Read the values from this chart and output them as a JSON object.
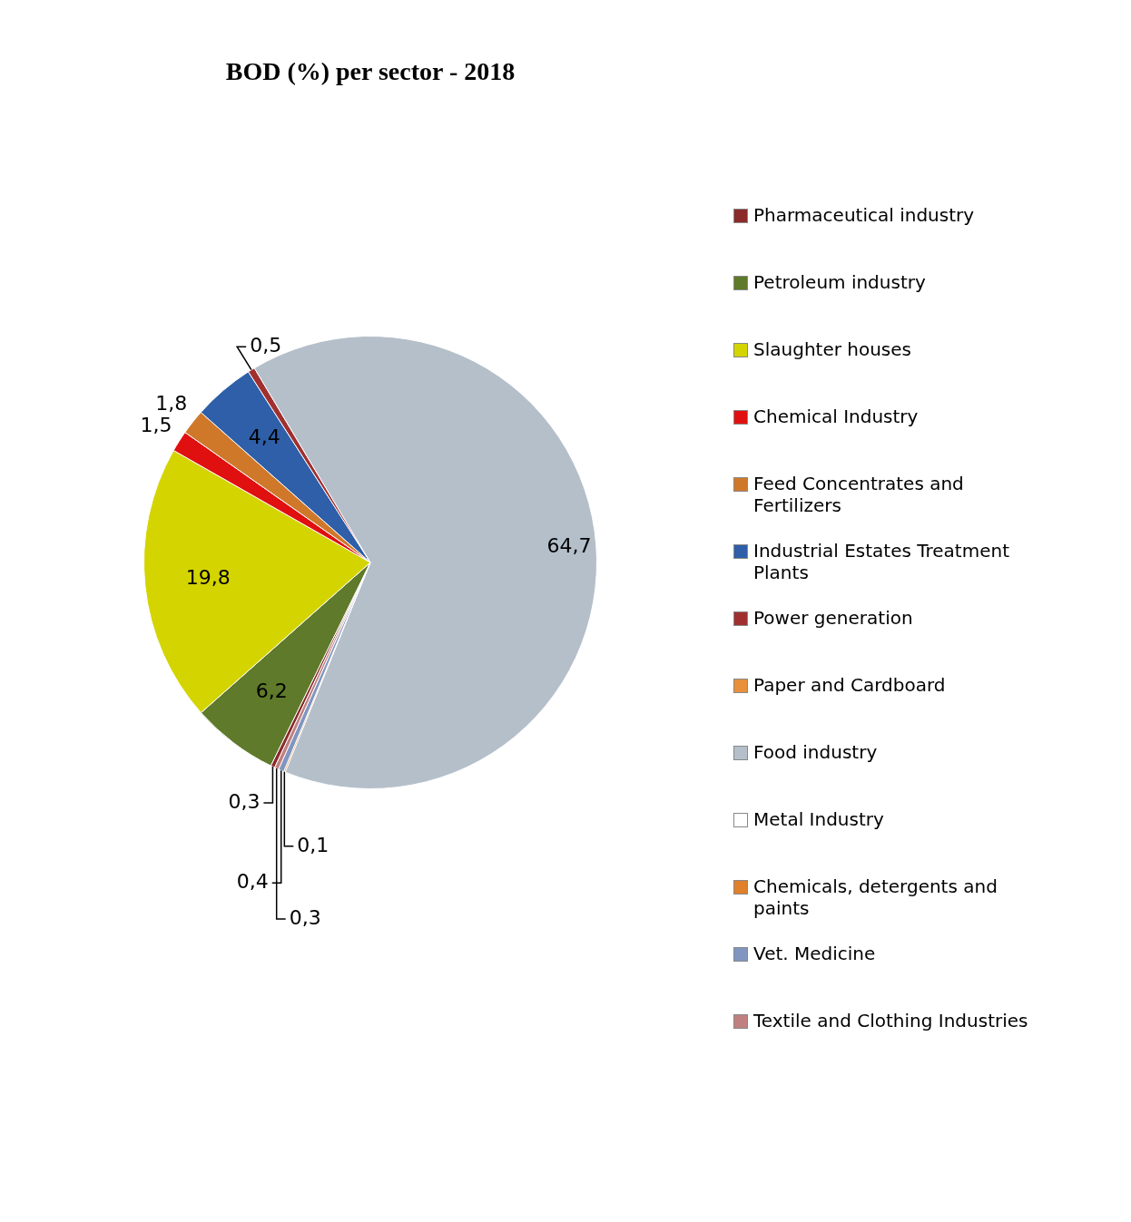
{
  "chart_data": {
    "type": "pie",
    "title": "BOD (%) per sector - 2018",
    "categories": [
      "Pharmaceutical industry",
      "Petroleum industry",
      "Slaughter  houses",
      "Chemical Industry",
      "Feed Concentrates and Fertilizers",
      "Industrial Estates Treatment Plants",
      "Power generation",
      "Paper and Cardboard",
      "Food industry",
      "Metal Industry",
      "Chemicals, detergents and paints",
      "Vet. Medicine",
      "Textile and Clothing Industries"
    ],
    "values": [
      0.3,
      6.2,
      19.8,
      1.5,
      1.8,
      4.4,
      0.5,
      0,
      64.7,
      0,
      0.1,
      0.4,
      0.3
    ],
    "value_labels": [
      "0,3",
      "6,2",
      "19,8",
      "1,5",
      "1,8",
      "4,4",
      "0,5",
      null,
      "64,7",
      null,
      "0,1",
      "0,4",
      "0,3"
    ],
    "colors": [
      "#8b2a2a",
      "#5f7a2a",
      "#d4d400",
      "#e01010",
      "#d0782a",
      "#2e5fa8",
      "#a03030",
      "#e8903a",
      "#b4bfca",
      "#ffffff",
      "#e0802a",
      "#8096c0",
      "#c08080"
    ],
    "legend": "right"
  }
}
